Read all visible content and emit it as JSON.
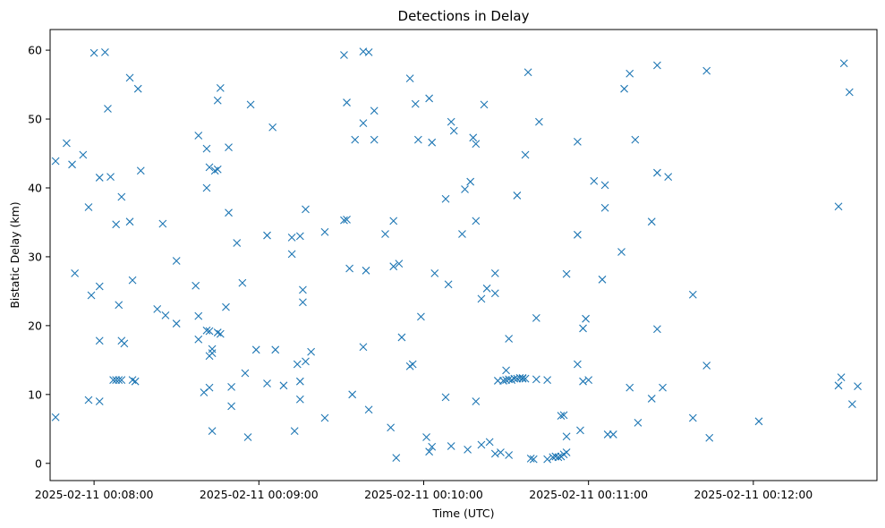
{
  "chart_data": {
    "type": "scatter",
    "title": "Detections in Delay",
    "xlabel": "Time (UTC)",
    "ylabel": "Bistatic Delay (km)",
    "marker": "x",
    "color": "#1f77b4",
    "grid": false,
    "xlim": [
      "2025-02-11 00:07:44",
      "2025-02-11 00:12:45"
    ],
    "ylim": [
      -2.5,
      63
    ],
    "xticks": [
      "2025-02-11 00:08:00",
      "2025-02-11 00:09:00",
      "2025-02-11 00:10:00",
      "2025-02-11 00:11:00",
      "2025-02-11 00:12:00"
    ],
    "yticks": [
      0,
      10,
      20,
      30,
      40,
      50,
      60
    ],
    "points": [
      [
        "00:07:46",
        43.9
      ],
      [
        "00:07:46",
        6.7
      ],
      [
        "00:07:50",
        46.5
      ],
      [
        "00:07:52",
        43.4
      ],
      [
        "00:07:53",
        27.6
      ],
      [
        "00:07:56",
        44.8
      ],
      [
        "00:07:58",
        37.2
      ],
      [
        "00:07:58",
        9.2
      ],
      [
        "00:07:59",
        24.4
      ],
      [
        "00:08:00",
        59.6
      ],
      [
        "00:08:02",
        41.5
      ],
      [
        "00:08:02",
        25.7
      ],
      [
        "00:08:02",
        17.8
      ],
      [
        "00:08:02",
        9.0
      ],
      [
        "00:08:04",
        59.7
      ],
      [
        "00:08:05",
        51.5
      ],
      [
        "00:08:06",
        41.6
      ],
      [
        "00:08:07",
        12.1
      ],
      [
        "00:08:08",
        34.7
      ],
      [
        "00:08:08",
        12.1
      ],
      [
        "00:08:09",
        12.1
      ],
      [
        "00:08:09",
        23.0
      ],
      [
        "00:08:10",
        38.7
      ],
      [
        "00:08:10",
        17.8
      ],
      [
        "00:08:10",
        12.1
      ],
      [
        "00:08:11",
        17.4
      ],
      [
        "00:08:13",
        56.0
      ],
      [
        "00:08:13",
        35.1
      ],
      [
        "00:08:14",
        26.6
      ],
      [
        "00:08:14",
        12.1
      ],
      [
        "00:08:15",
        11.9
      ],
      [
        "00:08:16",
        54.4
      ],
      [
        "00:08:17",
        42.5
      ],
      [
        "00:08:23",
        22.4
      ],
      [
        "00:08:25",
        34.8
      ],
      [
        "00:08:26",
        21.5
      ],
      [
        "00:08:30",
        29.4
      ],
      [
        "00:08:30",
        20.3
      ],
      [
        "00:08:37",
        25.8
      ],
      [
        "00:08:38",
        47.6
      ],
      [
        "00:08:38",
        21.4
      ],
      [
        "00:08:38",
        18.0
      ],
      [
        "00:08:40",
        10.3
      ],
      [
        "00:08:41",
        45.7
      ],
      [
        "00:08:41",
        40.0
      ],
      [
        "00:08:41",
        19.3
      ],
      [
        "00:08:42",
        43.0
      ],
      [
        "00:08:42",
        19.2
      ],
      [
        "00:08:42",
        15.6
      ],
      [
        "00:08:42",
        11.0
      ],
      [
        "00:08:43",
        4.7
      ],
      [
        "00:08:43",
        16.0
      ],
      [
        "00:08:43",
        16.6
      ],
      [
        "00:08:44",
        42.5
      ],
      [
        "00:08:45",
        52.7
      ],
      [
        "00:08:45",
        42.7
      ],
      [
        "00:08:45",
        19.0
      ],
      [
        "00:08:46",
        18.8
      ],
      [
        "00:08:46",
        54.5
      ],
      [
        "00:08:48",
        22.7
      ],
      [
        "00:08:49",
        45.9
      ],
      [
        "00:08:49",
        36.4
      ],
      [
        "00:08:50",
        8.3
      ],
      [
        "00:08:50",
        11.1
      ],
      [
        "00:08:52",
        32.0
      ],
      [
        "00:08:54",
        26.2
      ],
      [
        "00:08:55",
        13.1
      ],
      [
        "00:08:56",
        3.8
      ],
      [
        "00:08:57",
        52.1
      ],
      [
        "00:08:59",
        16.5
      ],
      [
        "00:09:03",
        33.1
      ],
      [
        "00:09:03",
        11.6
      ],
      [
        "00:09:05",
        48.8
      ],
      [
        "00:09:06",
        16.5
      ],
      [
        "00:09:09",
        11.3
      ],
      [
        "00:09:12",
        30.4
      ],
      [
        "00:09:12",
        32.8
      ],
      [
        "00:09:13",
        4.7
      ],
      [
        "00:09:14",
        14.4
      ],
      [
        "00:09:15",
        33.0
      ],
      [
        "00:09:15",
        11.9
      ],
      [
        "00:09:15",
        9.3
      ],
      [
        "00:09:16",
        25.2
      ],
      [
        "00:09:16",
        23.4
      ],
      [
        "00:09:17",
        36.9
      ],
      [
        "00:09:17",
        14.8
      ],
      [
        "00:09:19",
        16.2
      ],
      [
        "00:09:24",
        33.6
      ],
      [
        "00:09:24",
        6.6
      ],
      [
        "00:09:31",
        59.3
      ],
      [
        "00:09:31",
        35.3
      ],
      [
        "00:09:32",
        52.4
      ],
      [
        "00:09:32",
        35.4
      ],
      [
        "00:09:33",
        28.3
      ],
      [
        "00:09:34",
        10.0
      ],
      [
        "00:09:35",
        47.0
      ],
      [
        "00:09:38",
        59.8
      ],
      [
        "00:09:38",
        49.4
      ],
      [
        "00:09:38",
        16.9
      ],
      [
        "00:09:39",
        28.0
      ],
      [
        "00:09:40",
        59.7
      ],
      [
        "00:09:40",
        7.8
      ],
      [
        "00:09:42",
        51.2
      ],
      [
        "00:09:42",
        47.0
      ],
      [
        "00:09:46",
        33.3
      ],
      [
        "00:09:48",
        5.2
      ],
      [
        "00:09:49",
        35.2
      ],
      [
        "00:09:49",
        28.6
      ],
      [
        "00:09:50",
        0.8
      ],
      [
        "00:09:51",
        29.0
      ],
      [
        "00:09:52",
        18.3
      ],
      [
        "00:09:55",
        55.9
      ],
      [
        "00:09:55",
        14.1
      ],
      [
        "00:09:56",
        14.4
      ],
      [
        "00:09:57",
        52.2
      ],
      [
        "00:09:58",
        47.0
      ],
      [
        "00:09:59",
        21.3
      ],
      [
        "00:10:01",
        3.8
      ],
      [
        "00:10:02",
        53.0
      ],
      [
        "00:10:02",
        1.7
      ],
      [
        "00:10:03",
        46.6
      ],
      [
        "00:10:03",
        2.4
      ],
      [
        "00:10:04",
        27.6
      ],
      [
        "00:10:08",
        38.4
      ],
      [
        "00:10:08",
        9.6
      ],
      [
        "00:10:09",
        26.0
      ],
      [
        "00:10:10",
        49.6
      ],
      [
        "00:10:10",
        2.5
      ],
      [
        "00:10:11",
        48.3
      ],
      [
        "00:10:14",
        33.3
      ],
      [
        "00:10:15",
        39.8
      ],
      [
        "00:10:16",
        2.0
      ],
      [
        "00:10:17",
        40.9
      ],
      [
        "00:10:18",
        47.3
      ],
      [
        "00:10:19",
        9.0
      ],
      [
        "00:10:19",
        46.4
      ],
      [
        "00:10:19",
        35.2
      ],
      [
        "00:10:21",
        23.9
      ],
      [
        "00:10:21",
        2.7
      ],
      [
        "00:10:22",
        52.1
      ],
      [
        "00:10:23",
        25.4
      ],
      [
        "00:10:24",
        3.1
      ],
      [
        "00:10:26",
        27.6
      ],
      [
        "00:10:26",
        24.7
      ],
      [
        "00:10:26",
        1.4
      ],
      [
        "00:10:27",
        12.0
      ],
      [
        "00:10:28",
        1.6
      ],
      [
        "00:10:29",
        12.0
      ],
      [
        "00:10:30",
        13.5
      ],
      [
        "00:10:30",
        12.1
      ],
      [
        "00:10:31",
        12.2
      ],
      [
        "00:10:31",
        18.1
      ],
      [
        "00:10:31",
        1.2
      ],
      [
        "00:10:32",
        12.1
      ],
      [
        "00:10:33",
        12.3
      ],
      [
        "00:10:34",
        38.9
      ],
      [
        "00:10:34",
        12.3
      ],
      [
        "00:10:35",
        12.4
      ],
      [
        "00:10:36",
        12.3
      ],
      [
        "00:10:36",
        12.4
      ],
      [
        "00:10:37",
        44.8
      ],
      [
        "00:10:37",
        12.3
      ],
      [
        "00:10:38",
        56.8
      ],
      [
        "00:10:39",
        0.7
      ],
      [
        "00:10:40",
        0.6
      ],
      [
        "00:10:41",
        21.1
      ],
      [
        "00:10:41",
        12.2
      ],
      [
        "00:10:42",
        49.6
      ],
      [
        "00:10:45",
        0.6
      ],
      [
        "00:10:45",
        12.1
      ],
      [
        "00:10:47",
        0.9
      ],
      [
        "00:10:48",
        1.0
      ],
      [
        "00:10:49",
        0.9
      ],
      [
        "00:10:50",
        1.0
      ],
      [
        "00:10:50",
        6.9
      ],
      [
        "00:10:51",
        1.3
      ],
      [
        "00:10:51",
        7.0
      ],
      [
        "00:10:52",
        27.5
      ],
      [
        "00:10:52",
        3.9
      ],
      [
        "00:10:52",
        1.6
      ],
      [
        "00:10:56",
        46.7
      ],
      [
        "00:10:56",
        33.2
      ],
      [
        "00:10:56",
        14.4
      ],
      [
        "00:10:57",
        4.8
      ],
      [
        "00:10:58",
        19.6
      ],
      [
        "00:10:58",
        11.9
      ],
      [
        "00:10:59",
        21.0
      ],
      [
        "00:11:00",
        12.1
      ],
      [
        "00:11:02",
        41.0
      ],
      [
        "00:11:05",
        26.7
      ],
      [
        "00:11:06",
        37.1
      ],
      [
        "00:11:06",
        40.4
      ],
      [
        "00:11:07",
        4.2
      ],
      [
        "00:11:09",
        4.2
      ],
      [
        "00:11:12",
        30.7
      ],
      [
        "00:11:13",
        54.4
      ],
      [
        "00:11:15",
        56.6
      ],
      [
        "00:11:15",
        11.0
      ],
      [
        "00:11:17",
        47.0
      ],
      [
        "00:11:18",
        5.9
      ],
      [
        "00:11:23",
        35.1
      ],
      [
        "00:11:23",
        9.4
      ],
      [
        "00:11:25",
        57.8
      ],
      [
        "00:11:25",
        42.2
      ],
      [
        "00:11:25",
        19.5
      ],
      [
        "00:11:27",
        11.0
      ],
      [
        "00:11:29",
        41.6
      ],
      [
        "00:11:38",
        24.5
      ],
      [
        "00:11:38",
        6.6
      ],
      [
        "00:11:43",
        57.0
      ],
      [
        "00:11:43",
        14.2
      ],
      [
        "00:11:44",
        3.7
      ],
      [
        "00:12:02",
        6.1
      ],
      [
        "00:12:31",
        11.3
      ],
      [
        "00:12:31",
        37.3
      ],
      [
        "00:12:32",
        12.5
      ],
      [
        "00:12:33",
        58.1
      ],
      [
        "00:12:35",
        53.9
      ],
      [
        "00:12:36",
        8.6
      ],
      [
        "00:12:38",
        11.2
      ]
    ]
  }
}
